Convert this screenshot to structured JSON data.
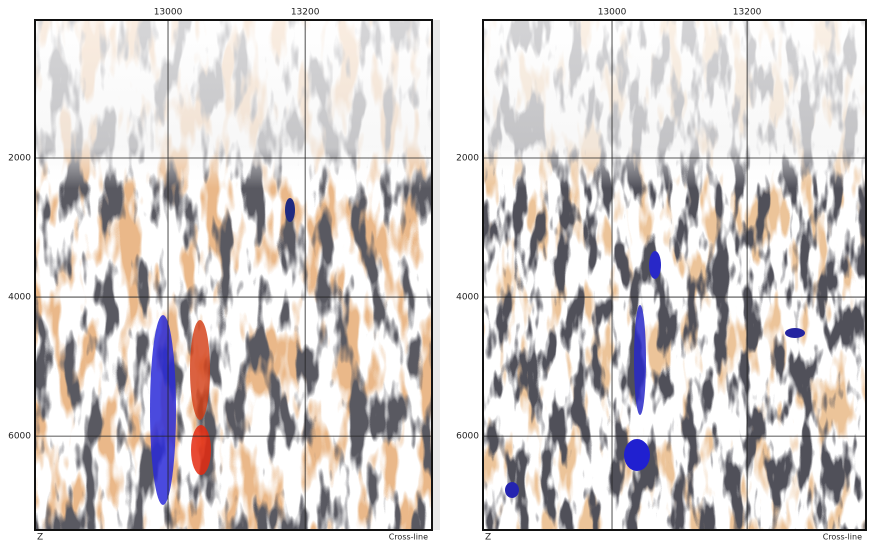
{
  "panels": [
    {
      "xlim": [
        12806,
        13385
      ],
      "ylim": [
        15,
        7350
      ],
      "xticks": [
        13000,
        13200
      ],
      "yticks": [
        2000,
        4000,
        6000
      ],
      "x_label": "Cross-line",
      "y_label": "Z"
    },
    {
      "xlim": [
        12809,
        13376
      ],
      "ylim": [
        15,
        7350
      ],
      "xticks": [
        13000,
        13200
      ],
      "yticks": [
        2000,
        4000,
        6000
      ],
      "x_label": "Cross-line",
      "y_label": "Z"
    }
  ]
}
